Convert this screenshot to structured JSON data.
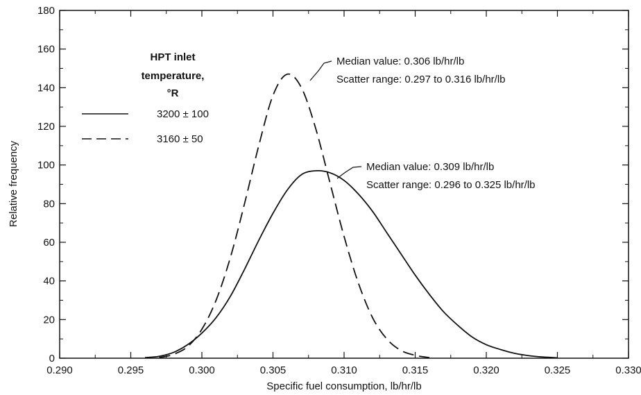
{
  "chart_data": {
    "type": "line",
    "title": "",
    "xlabel": "Specific fuel consumption, lb/hr/lb",
    "ylabel": "Relative frequency",
    "xlim": [
      0.29,
      0.33
    ],
    "ylim": [
      0,
      180
    ],
    "x_ticks": [
      "0.290",
      "0.295",
      "0.300",
      "0.305",
      "0.310",
      "0.315",
      "0.320",
      "0.325",
      "0.330"
    ],
    "y_ticks": [
      "0",
      "20",
      "40",
      "60",
      "80",
      "100",
      "120",
      "140",
      "160",
      "180"
    ],
    "grid": false,
    "legend": {
      "placement": "upper-left",
      "title_lines": [
        "HPT inlet",
        "temperature,",
        "°R"
      ]
    },
    "series": [
      {
        "name": "3200 ± 100",
        "style": "solid",
        "color": "#111111",
        "x": [
          0.296,
          0.297,
          0.298,
          0.299,
          0.3,
          0.301,
          0.302,
          0.303,
          0.304,
          0.305,
          0.306,
          0.307,
          0.308,
          0.309,
          0.31,
          0.311,
          0.312,
          0.313,
          0.314,
          0.315,
          0.316,
          0.317,
          0.318,
          0.319,
          0.32,
          0.321,
          0.322,
          0.323,
          0.324,
          0.325
        ],
        "y": [
          0.3,
          1,
          3,
          7,
          13,
          21,
          32,
          46,
          61,
          75,
          87,
          95,
          97,
          96,
          92,
          85,
          76,
          65,
          54,
          43,
          33,
          24,
          17,
          11,
          7,
          4.5,
          2.5,
          1.3,
          0.6,
          0.2
        ]
      },
      {
        "name": "3160 ± 50",
        "style": "dashed",
        "color": "#111111",
        "x": [
          0.297,
          0.298,
          0.299,
          0.3,
          0.301,
          0.302,
          0.303,
          0.304,
          0.305,
          0.306,
          0.307,
          0.308,
          0.309,
          0.31,
          0.311,
          0.312,
          0.313,
          0.314,
          0.315,
          0.316
        ],
        "y": [
          0.3,
          2,
          6,
          15,
          30,
          52,
          80,
          110,
          136,
          147,
          140,
          119,
          91,
          63,
          39,
          21,
          10,
          4,
          1.5,
          0.3
        ]
      }
    ],
    "annotations": [
      {
        "lines": [
          "Median value:  0.306 lb/hr/lb",
          "Scatter range:  0.297 to 0.316 lb/hr/lb"
        ],
        "target": [
          0.3067,
          145
        ]
      },
      {
        "lines": [
          "Median value:  0.309 lb/hr/lb",
          "Scatter range:  0.296 to 0.325 lb/hr/lb"
        ],
        "target": [
          0.3092,
          96
        ]
      }
    ]
  }
}
